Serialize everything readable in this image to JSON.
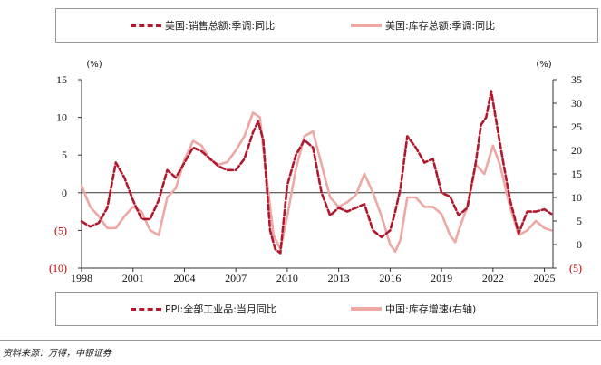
{
  "legend_top": {
    "item1": "美国:销售总额:季调:同比",
    "item2": "美国:库存总额:季调:同比"
  },
  "legend_bottom": {
    "item1": "PPI:全部工业品:当月同比",
    "item2": "中国:库存增速(右轴)"
  },
  "footnote": "资料来源：万得，中银证券",
  "colors": {
    "dark_red": "#b0182e",
    "light_pink": "#eea8a4",
    "red_tick": "#c00000"
  },
  "chart_data": {
    "type": "line",
    "left_axis": {
      "unit_label": "(%)",
      "ylim": [
        -10,
        15
      ],
      "ticks": [
        "15",
        "10",
        "5",
        "0",
        "(5)",
        "(10)"
      ]
    },
    "right_axis": {
      "unit_label": "(%)",
      "ylim": [
        -5,
        35
      ],
      "ticks": [
        "35",
        "30",
        "25",
        "20",
        "15",
        "10",
        "5",
        "0",
        "(5)"
      ]
    },
    "x_axis": {
      "xlim": [
        1998,
        2025.5
      ],
      "ticks": [
        "1998",
        "2001",
        "2004",
        "2007",
        "2010",
        "2013",
        "2016",
        "2019",
        "2022",
        "2025"
      ]
    },
    "series": [
      {
        "name": "PPI:全部工业品:当月同比",
        "axis": "left",
        "style": "dashed",
        "x": [
          1998,
          1998.5,
          1999,
          1999.5,
          2000,
          2000.5,
          2001,
          2001.5,
          2002,
          2002.5,
          2003,
          2003.5,
          2004,
          2004.5,
          2005,
          2005.5,
          2006,
          2006.5,
          2007,
          2007.5,
          2008,
          2008.3,
          2008.6,
          2009,
          2009.3,
          2009.6,
          2010,
          2010.5,
          2011,
          2011.5,
          2012,
          2012.5,
          2013,
          2013.5,
          2014,
          2014.5,
          2015,
          2015.5,
          2016,
          2016.3,
          2016.6,
          2017,
          2017.5,
          2018,
          2018.5,
          2019,
          2019.5,
          2020,
          2020.5,
          2021,
          2021.3,
          2021.6,
          2021.9,
          2022.3,
          2022.6,
          2023,
          2023.5,
          2024,
          2024.5,
          2025,
          2025.4
        ],
        "values": [
          -3.8,
          -4.5,
          -4.0,
          -2.0,
          4.0,
          2.0,
          -1.0,
          -3.5,
          -3.5,
          -1.0,
          3.0,
          2.0,
          4.0,
          6.0,
          5.5,
          4.5,
          3.5,
          3.0,
          3.0,
          4.5,
          8.0,
          9.5,
          7.0,
          -5.0,
          -7.5,
          -8.0,
          1.0,
          5.0,
          7.0,
          6.0,
          0.0,
          -3.0,
          -2.0,
          -2.5,
          -2.0,
          -1.5,
          -5.0,
          -5.9,
          -5.0,
          -2.5,
          0.5,
          7.5,
          6.0,
          4.0,
          4.5,
          0.0,
          -0.5,
          -3.0,
          -2.0,
          4.0,
          9.0,
          10.0,
          13.5,
          8.0,
          4.0,
          -1.0,
          -5.4,
          -2.5,
          -2.5,
          -2.2,
          -2.8
        ]
      },
      {
        "name": "中国:库存增速(右轴)",
        "axis": "right",
        "style": "solid",
        "x": [
          1998,
          1998.5,
          1999,
          1999.5,
          2000,
          2000.5,
          2001,
          2001.5,
          2002,
          2002.5,
          2003,
          2003.5,
          2004,
          2004.5,
          2005,
          2005.5,
          2006,
          2006.5,
          2007,
          2007.5,
          2008,
          2008.4,
          2008.8,
          2009.2,
          2009.6,
          2010,
          2010.5,
          2011,
          2011.5,
          2012,
          2012.5,
          2013,
          2013.5,
          2014,
          2014.5,
          2015,
          2015.5,
          2016,
          2016.3,
          2016.6,
          2017,
          2017.5,
          2018,
          2018.5,
          2019,
          2019.5,
          2019.8,
          2020,
          2020.5,
          2021,
          2021.5,
          2022,
          2022.4,
          2022.8,
          2023,
          2023.5,
          2024,
          2024.5,
          2025,
          2025.4
        ],
        "values": [
          12.5,
          8.0,
          6.0,
          3.5,
          3.5,
          6.0,
          8.0,
          7.0,
          3.0,
          2.0,
          10.0,
          12.0,
          18.0,
          22.0,
          21.0,
          18.0,
          17.0,
          17.5,
          20.0,
          23.0,
          28.0,
          27.0,
          14.0,
          2.0,
          -1.0,
          6.0,
          16.0,
          23.0,
          24.0,
          17.0,
          10.0,
          8.0,
          9.0,
          10.5,
          15.0,
          11.0,
          6.0,
          0.0,
          -1.5,
          1.0,
          10.0,
          10.0,
          8.0,
          8.0,
          6.5,
          2.0,
          0.5,
          3.0,
          8.0,
          17.0,
          15.0,
          21.0,
          17.0,
          11.0,
          8.0,
          2.0,
          3.0,
          5.0,
          3.5,
          3.0
        ]
      }
    ]
  }
}
